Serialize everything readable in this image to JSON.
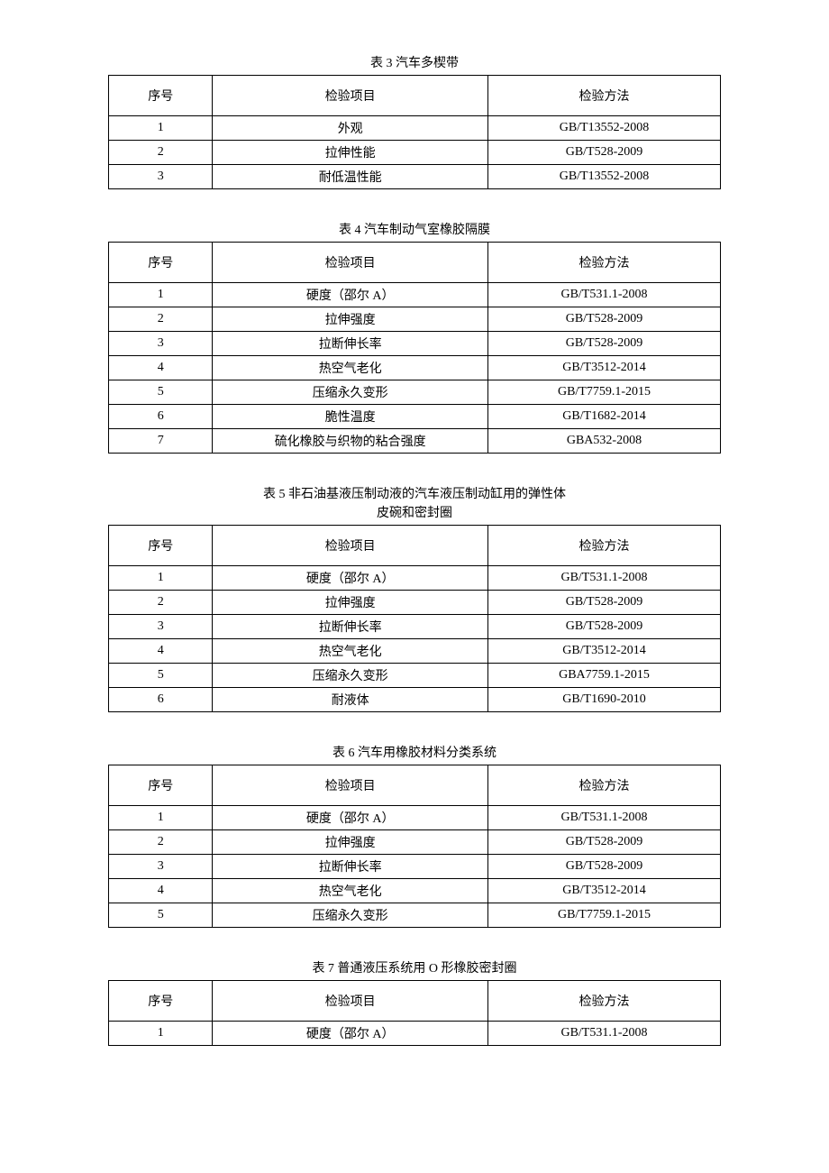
{
  "headers": {
    "seq": "序号",
    "item": "检验项目",
    "method": "检验方法"
  },
  "tables": [
    {
      "title": "表 3 汽车多楔带",
      "rows": [
        {
          "seq": "1",
          "item": "外观",
          "method": "GB/T13552-2008"
        },
        {
          "seq": "2",
          "item": "拉伸性能",
          "method": "GB/T528-2009"
        },
        {
          "seq": "3",
          "item": "耐低温性能",
          "method": "GB/T13552-2008"
        }
      ]
    },
    {
      "title": "表 4 汽车制动气室橡胶隔膜",
      "rows": [
        {
          "seq": "1",
          "item": "硬度（邵尔 A）",
          "method": "GB/T531.1-2008"
        },
        {
          "seq": "2",
          "item": "拉伸强度",
          "method": "GB/T528-2009"
        },
        {
          "seq": "3",
          "item": "拉断伸长率",
          "method": "GB/T528-2009"
        },
        {
          "seq": "4",
          "item": "热空气老化",
          "method": "GB/T3512-2014"
        },
        {
          "seq": "5",
          "item": "压缩永久变形",
          "method": "GB/T7759.1-2015"
        },
        {
          "seq": "6",
          "item": "脆性温度",
          "method": "GB/T1682-2014"
        },
        {
          "seq": "7",
          "item": "硫化橡胶与织物的粘合强度",
          "method": "GBA532-2008"
        }
      ]
    },
    {
      "title": "表 5 非石油基液压制动液的汽车液压制动缸用的弹性体\n皮碗和密封圈",
      "rows": [
        {
          "seq": "1",
          "item": "硬度（邵尔 A）",
          "method": "GB/T531.1-2008"
        },
        {
          "seq": "2",
          "item": "拉伸强度",
          "method": "GB/T528-2009"
        },
        {
          "seq": "3",
          "item": "拉断伸长率",
          "method": "GB/T528-2009"
        },
        {
          "seq": "4",
          "item": "热空气老化",
          "method": "GB/T3512-2014"
        },
        {
          "seq": "5",
          "item": "压缩永久变形",
          "method": "GBA7759.1-2015"
        },
        {
          "seq": "6",
          "item": "耐液体",
          "method": "GB/T1690-2010"
        }
      ]
    },
    {
      "title": "表 6 汽车用橡胶材料分类系统",
      "rows": [
        {
          "seq": "1",
          "item": "硬度（邵尔 A）",
          "method": "GB/T531.1-2008"
        },
        {
          "seq": "2",
          "item": "拉伸强度",
          "method": "GB/T528-2009"
        },
        {
          "seq": "3",
          "item": "拉断伸长率",
          "method": "GB/T528-2009"
        },
        {
          "seq": "4",
          "item": "热空气老化",
          "method": "GB/T3512-2014"
        },
        {
          "seq": "5",
          "item": "压缩永久变形",
          "method": "GB/T7759.1-2015"
        }
      ]
    },
    {
      "title": "表 7 普通液压系统用 O 形橡胶密封圈",
      "rows": [
        {
          "seq": "1",
          "item": "硬度（邵尔 A）",
          "method": "GB/T531.1-2008"
        }
      ]
    }
  ]
}
